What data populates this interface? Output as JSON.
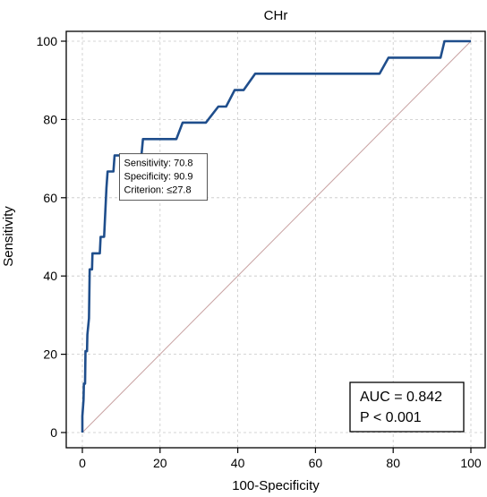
{
  "chart_data": {
    "type": "line",
    "title": "CHr",
    "xlabel": "100-Specificity",
    "ylabel": "Sensitivity",
    "xlim": [
      0,
      100
    ],
    "ylim": [
      0,
      100
    ],
    "x_ticks": [
      "0",
      "20",
      "40",
      "60",
      "80",
      "100"
    ],
    "y_ticks": [
      "0",
      "20",
      "40",
      "60",
      "80",
      "100"
    ],
    "grid": true,
    "colors": {
      "roc": "#1f4e8c",
      "diagonal": "#c9a3a3",
      "grid": "#c8c8c8"
    },
    "series": [
      {
        "values_xy": [
          [
            0,
            0
          ],
          [
            0,
            4.2
          ],
          [
            0.3,
            8.3
          ],
          [
            0.4,
            12.5
          ],
          [
            0.7,
            12.5
          ],
          [
            0.8,
            20.8
          ],
          [
            1.2,
            20.8
          ],
          [
            1.3,
            25.0
          ],
          [
            1.7,
            29.2
          ],
          [
            1.9,
            41.7
          ],
          [
            2.5,
            41.7
          ],
          [
            2.6,
            45.8
          ],
          [
            4.5,
            45.8
          ],
          [
            4.7,
            50.0
          ],
          [
            5.6,
            50.0
          ],
          [
            6.2,
            62.5
          ],
          [
            6.5,
            66.7
          ],
          [
            8.0,
            66.7
          ],
          [
            8.3,
            70.8
          ],
          [
            15.2,
            70.8
          ],
          [
            15.6,
            75.0
          ],
          [
            24.2,
            75.0
          ],
          [
            25.8,
            79.2
          ],
          [
            31.8,
            79.2
          ],
          [
            35.0,
            83.3
          ],
          [
            37.0,
            83.3
          ],
          [
            39.2,
            87.5
          ],
          [
            41.5,
            87.5
          ],
          [
            44.5,
            91.7
          ],
          [
            76.5,
            91.7
          ],
          [
            78.8,
            95.8
          ],
          [
            92.2,
            95.8
          ],
          [
            93.2,
            100.0
          ],
          [
            100,
            100.0
          ]
        ]
      },
      {
        "values_xy": [
          [
            0,
            0
          ],
          [
            100,
            100
          ]
        ]
      }
    ],
    "annotation": {
      "lines": [
        "Sensitivity: 70.8",
        "Specificity: 90.9",
        "Criterion: ≤27.8"
      ],
      "point": [
        9.1,
        70.8
      ]
    },
    "stats_box": {
      "lines": [
        "AUC = 0.842",
        "P < 0.001"
      ]
    }
  }
}
